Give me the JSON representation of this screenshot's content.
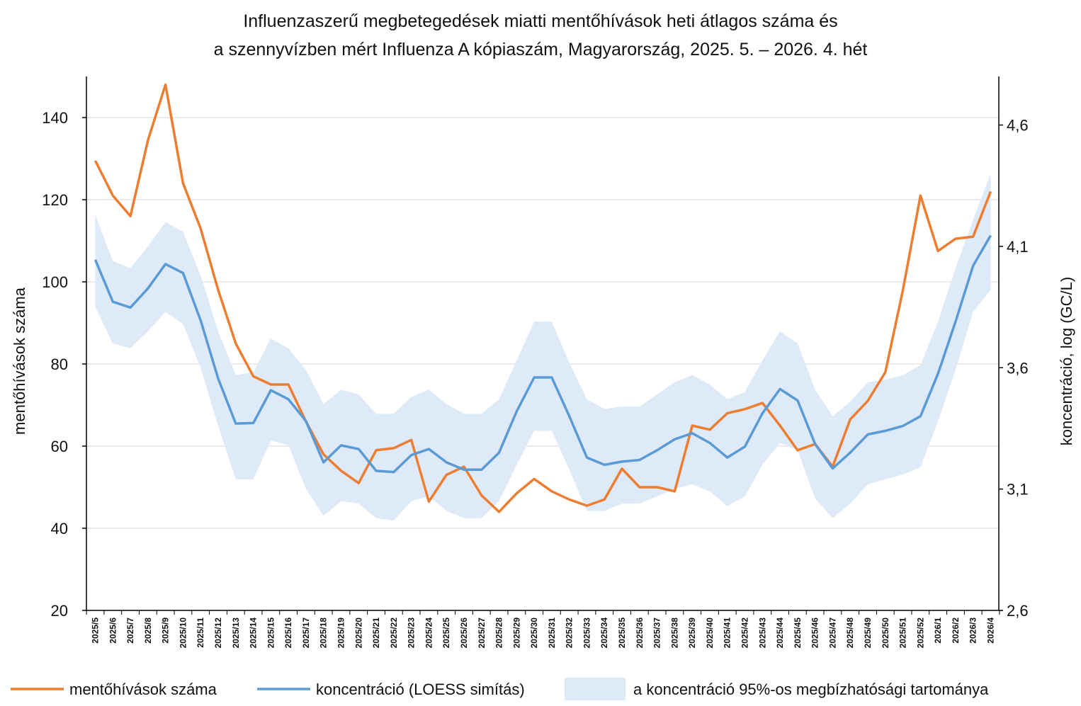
{
  "chart_data": {
    "type": "line",
    "title": [
      "Influenzaszerű megbetegedések miatti mentőhívások heti átlagos száma és",
      "a szennyvízben mért Influenza A kópiaszám, Magyarország, 2025. 5. – 2026. 4. hét"
    ],
    "ylabel": "mentőhívások száma",
    "y2label": "koncentráció, log (GC/L)",
    "ylim": [
      20,
      150
    ],
    "yticks": [
      "20",
      "40",
      "60",
      "80",
      "100",
      "120",
      "140"
    ],
    "y2lim": [
      2.6,
      4.8
    ],
    "y2ticks": [
      "2,6",
      "3,1",
      "3,6",
      "4,1",
      "4,6"
    ],
    "categories": [
      "2025/5",
      "2025/6",
      "2025/7",
      "2025/8",
      "2025/9",
      "2025/10",
      "2025/11",
      "2025/12",
      "2025/13",
      "2025/14",
      "2025/15",
      "2025/16",
      "2025/17",
      "2025/18",
      "2025/19",
      "2025/20",
      "2025/21",
      "2025/22",
      "2025/23",
      "2025/24",
      "2025/25",
      "2025/26",
      "2025/27",
      "2025/28",
      "2025/29",
      "2025/30",
      "2025/31",
      "2025/32",
      "2025/33",
      "2025/34",
      "2025/35",
      "2025/36",
      "2025/37",
      "2025/38",
      "2025/39",
      "2025/40",
      "2025/41",
      "2025/42",
      "2025/43",
      "2025/44",
      "2025/45",
      "2025/46",
      "2025/47",
      "2025/48",
      "2025/49",
      "2025/50",
      "2025/51",
      "2025/52",
      "2026/1",
      "2026/2",
      "2026/3",
      "2026/4"
    ],
    "series": [
      {
        "name": "mentőhívások száma",
        "axis": "left",
        "color": "#ED7D31",
        "values": [
          129.5,
          121,
          116,
          134.5,
          148,
          124,
          113,
          98,
          85,
          77,
          75,
          75,
          66,
          58,
          54,
          51,
          59,
          59.5,
          61.5,
          46.5,
          53,
          55,
          48,
          44,
          48.5,
          52,
          49,
          47,
          45.5,
          47,
          54.5,
          50,
          50,
          49,
          65,
          64,
          68,
          69,
          70.5,
          65,
          59,
          60.5,
          55,
          66.5,
          71,
          78,
          98,
          121,
          107.5,
          110.5,
          111,
          122
        ]
      },
      {
        "name": "koncentráció (LOESS simítás)",
        "axis": "right",
        "color": "#5B9BD5",
        "values": [
          4.045,
          3.872,
          3.848,
          3.927,
          4.027,
          3.99,
          3.795,
          3.555,
          3.37,
          3.372,
          3.507,
          3.47,
          3.38,
          3.21,
          3.28,
          3.265,
          3.175,
          3.17,
          3.24,
          3.265,
          3.21,
          3.18,
          3.18,
          3.25,
          3.42,
          3.56,
          3.56,
          3.4,
          3.23,
          3.2,
          3.213,
          3.22,
          3.26,
          3.305,
          3.33,
          3.29,
          3.23,
          3.275,
          3.412,
          3.512,
          3.465,
          3.285,
          3.185,
          3.25,
          3.325,
          3.34,
          3.36,
          3.4,
          3.575,
          3.79,
          4.02,
          4.145
        ]
      }
    ],
    "band": {
      "name": "a koncentráció 95%-os megbízhatósági tartománya",
      "axis": "right",
      "color": "#DEEAF7",
      "lower": [
        3.85,
        3.7,
        3.68,
        3.75,
        3.83,
        3.78,
        3.6,
        3.36,
        3.14,
        3.14,
        3.3,
        3.28,
        3.1,
        2.99,
        3.05,
        3.04,
        2.98,
        2.97,
        3.05,
        3.07,
        3.01,
        2.98,
        2.98,
        3.05,
        3.2,
        3.34,
        3.34,
        3.18,
        3.01,
        3.01,
        3.04,
        3.04,
        3.07,
        3.1,
        3.12,
        3.09,
        3.03,
        3.07,
        3.2,
        3.29,
        3.26,
        3.06,
        2.98,
        3.04,
        3.12,
        3.14,
        3.16,
        3.19,
        3.38,
        3.59,
        3.83,
        3.92
      ],
      "upper": [
        4.23,
        4.04,
        4.01,
        4.1,
        4.2,
        4.16,
        3.98,
        3.75,
        3.57,
        3.58,
        3.72,
        3.68,
        3.59,
        3.45,
        3.51,
        3.49,
        3.41,
        3.41,
        3.48,
        3.51,
        3.45,
        3.41,
        3.41,
        3.47,
        3.63,
        3.79,
        3.79,
        3.62,
        3.47,
        3.43,
        3.44,
        3.44,
        3.49,
        3.54,
        3.57,
        3.53,
        3.47,
        3.5,
        3.63,
        3.75,
        3.7,
        3.51,
        3.4,
        3.46,
        3.54,
        3.55,
        3.57,
        3.61,
        3.79,
        4.01,
        4.21,
        4.4
      ]
    },
    "legend": {
      "position": "bottom",
      "items": [
        "mentőhívások száma",
        "koncentráció (LOESS simítás)",
        "a koncentráció 95%-os megbízhatósági tartománya"
      ]
    }
  }
}
